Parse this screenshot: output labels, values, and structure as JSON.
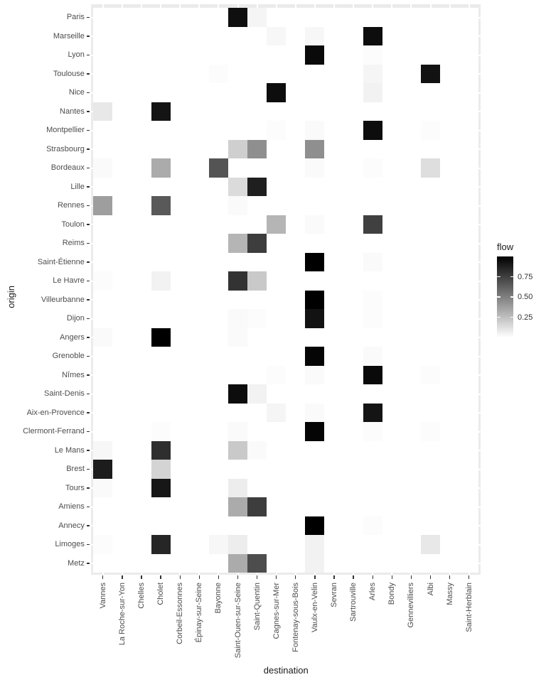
{
  "chart_data": {
    "type": "heatmap",
    "xlabel": "destination",
    "ylabel": "origin",
    "legend": {
      "title": "flow",
      "position": "right",
      "min": 0,
      "max": 1,
      "ticks": [
        0.25,
        0.5,
        0.75
      ],
      "tick_labels": [
        "0.25",
        "0.50",
        "0.75"
      ],
      "low_color": "#ffffff",
      "high_color": "#000000"
    },
    "x_categories": [
      "Vannes",
      "La Roche-sur-Yon",
      "Chelles",
      "Cholet",
      "Corbeil-Essonnes",
      "Épinay-sur-Seine",
      "Bayonne",
      "Saint-Ouen-sur-Seine",
      "Saint-Quentin",
      "Cagnes-sur-Mer",
      "Fontenay-sous-Bois",
      "Vaulx-en-Velin",
      "Sevran",
      "Sartrouville",
      "Arles",
      "Bondy",
      "Gennevilliers",
      "Albi",
      "Massy",
      "Saint-Herblain"
    ],
    "y_categories": [
      "Paris",
      "Marseille",
      "Lyon",
      "Toulouse",
      "Nice",
      "Nantes",
      "Montpellier",
      "Strasbourg",
      "Bordeaux",
      "Lille",
      "Rennes",
      "Toulon",
      "Reims",
      "Saint-Étienne",
      "Le Havre",
      "Villeurbanne",
      "Dijon",
      "Angers",
      "Grenoble",
      "Nîmes",
      "Saint-Denis",
      "Aix-en-Provence",
      "Clermont-Ferrand",
      "Le Mans",
      "Brest",
      "Tours",
      "Amiens",
      "Annecy",
      "Limoges",
      "Metz"
    ],
    "cells": [
      {
        "origin": "Paris",
        "destination": "Saint-Ouen-sur-Seine",
        "flow": 0.94
      },
      {
        "origin": "Paris",
        "destination": "Saint-Quentin",
        "flow": 0.04
      },
      {
        "origin": "Marseille",
        "destination": "Cagnes-sur-Mer",
        "flow": 0.03
      },
      {
        "origin": "Marseille",
        "destination": "Vaulx-en-Velin",
        "flow": 0.03
      },
      {
        "origin": "Marseille",
        "destination": "Arles",
        "flow": 0.95
      },
      {
        "origin": "Lyon",
        "destination": "Vaulx-en-Velin",
        "flow": 0.96
      },
      {
        "origin": "Lyon",
        "destination": "Arles",
        "flow": 0.01
      },
      {
        "origin": "Toulouse",
        "destination": "Bayonne",
        "flow": 0.01
      },
      {
        "origin": "Toulouse",
        "destination": "Arles",
        "flow": 0.04
      },
      {
        "origin": "Toulouse",
        "destination": "Albi",
        "flow": 0.93
      },
      {
        "origin": "Nice",
        "destination": "Cagnes-sur-Mer",
        "flow": 0.95
      },
      {
        "origin": "Nice",
        "destination": "Arles",
        "flow": 0.05
      },
      {
        "origin": "Nantes",
        "destination": "Vannes",
        "flow": 0.09
      },
      {
        "origin": "Nantes",
        "destination": "Cholet",
        "flow": 0.92
      },
      {
        "origin": "Montpellier",
        "destination": "Cagnes-sur-Mer",
        "flow": 0.01
      },
      {
        "origin": "Montpellier",
        "destination": "Vaulx-en-Velin",
        "flow": 0.02
      },
      {
        "origin": "Montpellier",
        "destination": "Arles",
        "flow": 0.95
      },
      {
        "origin": "Montpellier",
        "destination": "Albi",
        "flow": 0.01
      },
      {
        "origin": "Strasbourg",
        "destination": "Saint-Ouen-sur-Seine",
        "flow": 0.19
      },
      {
        "origin": "Strasbourg",
        "destination": "Saint-Quentin",
        "flow": 0.44
      },
      {
        "origin": "Strasbourg",
        "destination": "Vaulx-en-Velin",
        "flow": 0.44
      },
      {
        "origin": "Bordeaux",
        "destination": "Vannes",
        "flow": 0.02
      },
      {
        "origin": "Bordeaux",
        "destination": "Cholet",
        "flow": 0.33
      },
      {
        "origin": "Bordeaux",
        "destination": "Bayonne",
        "flow": 0.67
      },
      {
        "origin": "Bordeaux",
        "destination": "Vaulx-en-Velin",
        "flow": 0.02
      },
      {
        "origin": "Bordeaux",
        "destination": "Arles",
        "flow": 0.01
      },
      {
        "origin": "Bordeaux",
        "destination": "Albi",
        "flow": 0.13
      },
      {
        "origin": "Lille",
        "destination": "Saint-Ouen-sur-Seine",
        "flow": 0.14
      },
      {
        "origin": "Lille",
        "destination": "Saint-Quentin",
        "flow": 0.88
      },
      {
        "origin": "Rennes",
        "destination": "Vannes",
        "flow": 0.38
      },
      {
        "origin": "Rennes",
        "destination": "Cholet",
        "flow": 0.65
      },
      {
        "origin": "Rennes",
        "destination": "Saint-Ouen-sur-Seine",
        "flow": 0.02
      },
      {
        "origin": "Toulon",
        "destination": "Cagnes-sur-Mer",
        "flow": 0.29
      },
      {
        "origin": "Toulon",
        "destination": "Vaulx-en-Velin",
        "flow": 0.02
      },
      {
        "origin": "Toulon",
        "destination": "Arles",
        "flow": 0.75
      },
      {
        "origin": "Reims",
        "destination": "Saint-Ouen-sur-Seine",
        "flow": 0.29
      },
      {
        "origin": "Reims",
        "destination": "Saint-Quentin",
        "flow": 0.76
      },
      {
        "origin": "Saint-Étienne",
        "destination": "Vaulx-en-Velin",
        "flow": 1.0
      },
      {
        "origin": "Saint-Étienne",
        "destination": "Arles",
        "flow": 0.02
      },
      {
        "origin": "Le Havre",
        "destination": "Vannes",
        "flow": 0.01
      },
      {
        "origin": "Le Havre",
        "destination": "Cholet",
        "flow": 0.05
      },
      {
        "origin": "Le Havre",
        "destination": "Saint-Ouen-sur-Seine",
        "flow": 0.8
      },
      {
        "origin": "Le Havre",
        "destination": "Saint-Quentin",
        "flow": 0.21
      },
      {
        "origin": "Villeurbanne",
        "destination": "Vaulx-en-Velin",
        "flow": 1.0
      },
      {
        "origin": "Villeurbanne",
        "destination": "Arles",
        "flow": 0.01
      },
      {
        "origin": "Dijon",
        "destination": "Saint-Ouen-sur-Seine",
        "flow": 0.02
      },
      {
        "origin": "Dijon",
        "destination": "Saint-Quentin",
        "flow": 0.01
      },
      {
        "origin": "Dijon",
        "destination": "Vaulx-en-Velin",
        "flow": 0.93
      },
      {
        "origin": "Dijon",
        "destination": "Arles",
        "flow": 0.01
      },
      {
        "origin": "Angers",
        "destination": "Vannes",
        "flow": 0.02
      },
      {
        "origin": "Angers",
        "destination": "Cholet",
        "flow": 1.0
      },
      {
        "origin": "Angers",
        "destination": "Saint-Ouen-sur-Seine",
        "flow": 0.02
      },
      {
        "origin": "Grenoble",
        "destination": "Vaulx-en-Velin",
        "flow": 0.98
      },
      {
        "origin": "Grenoble",
        "destination": "Arles",
        "flow": 0.02
      },
      {
        "origin": "Nîmes",
        "destination": "Cagnes-sur-Mer",
        "flow": 0.01
      },
      {
        "origin": "Nîmes",
        "destination": "Vaulx-en-Velin",
        "flow": 0.02
      },
      {
        "origin": "Nîmes",
        "destination": "Arles",
        "flow": 0.96
      },
      {
        "origin": "Nîmes",
        "destination": "Albi",
        "flow": 0.01
      },
      {
        "origin": "Saint-Denis",
        "destination": "Saint-Ouen-sur-Seine",
        "flow": 0.95
      },
      {
        "origin": "Saint-Denis",
        "destination": "Saint-Quentin",
        "flow": 0.05
      },
      {
        "origin": "Aix-en-Provence",
        "destination": "Cagnes-sur-Mer",
        "flow": 0.04
      },
      {
        "origin": "Aix-en-Provence",
        "destination": "Vaulx-en-Velin",
        "flow": 0.02
      },
      {
        "origin": "Aix-en-Provence",
        "destination": "Arles",
        "flow": 0.92
      },
      {
        "origin": "Clermont-Ferrand",
        "destination": "Cholet",
        "flow": 0.01
      },
      {
        "origin": "Clermont-Ferrand",
        "destination": "Saint-Ouen-sur-Seine",
        "flow": 0.02
      },
      {
        "origin": "Clermont-Ferrand",
        "destination": "Vaulx-en-Velin",
        "flow": 0.98
      },
      {
        "origin": "Clermont-Ferrand",
        "destination": "Arles",
        "flow": 0.01
      },
      {
        "origin": "Clermont-Ferrand",
        "destination": "Albi",
        "flow": 0.01
      },
      {
        "origin": "Le Mans",
        "destination": "Vannes",
        "flow": 0.03
      },
      {
        "origin": "Le Mans",
        "destination": "Cholet",
        "flow": 0.82
      },
      {
        "origin": "Le Mans",
        "destination": "Saint-Ouen-sur-Seine",
        "flow": 0.21
      },
      {
        "origin": "Le Mans",
        "destination": "Saint-Quentin",
        "flow": 0.02
      },
      {
        "origin": "Brest",
        "destination": "Vannes",
        "flow": 0.89
      },
      {
        "origin": "Brest",
        "destination": "Cholet",
        "flow": 0.17
      },
      {
        "origin": "Tours",
        "destination": "Vannes",
        "flow": 0.02
      },
      {
        "origin": "Tours",
        "destination": "Cholet",
        "flow": 0.91
      },
      {
        "origin": "Tours",
        "destination": "Saint-Ouen-sur-Seine",
        "flow": 0.07
      },
      {
        "origin": "Amiens",
        "destination": "Saint-Ouen-sur-Seine",
        "flow": 0.33
      },
      {
        "origin": "Amiens",
        "destination": "Saint-Quentin",
        "flow": 0.76
      },
      {
        "origin": "Annecy",
        "destination": "Vaulx-en-Velin",
        "flow": 1.0
      },
      {
        "origin": "Annecy",
        "destination": "Arles",
        "flow": 0.01
      },
      {
        "origin": "Limoges",
        "destination": "Vannes",
        "flow": 0.01
      },
      {
        "origin": "Limoges",
        "destination": "Cholet",
        "flow": 0.85
      },
      {
        "origin": "Limoges",
        "destination": "Bayonne",
        "flow": 0.03
      },
      {
        "origin": "Limoges",
        "destination": "Saint-Ouen-sur-Seine",
        "flow": 0.07
      },
      {
        "origin": "Limoges",
        "destination": "Vaulx-en-Velin",
        "flow": 0.05
      },
      {
        "origin": "Limoges",
        "destination": "Albi",
        "flow": 0.09
      },
      {
        "origin": "Metz",
        "destination": "Saint-Ouen-sur-Seine",
        "flow": 0.33
      },
      {
        "origin": "Metz",
        "destination": "Saint-Quentin",
        "flow": 0.7
      },
      {
        "origin": "Metz",
        "destination": "Vaulx-en-Velin",
        "flow": 0.05
      }
    ]
  },
  "style": {
    "background": "#ffffff",
    "panel_edge": "#ebebeb",
    "tick_color": "#333333",
    "axis_text_color": "#4d4d4d",
    "axis_title_color": "#1a1a1a"
  }
}
